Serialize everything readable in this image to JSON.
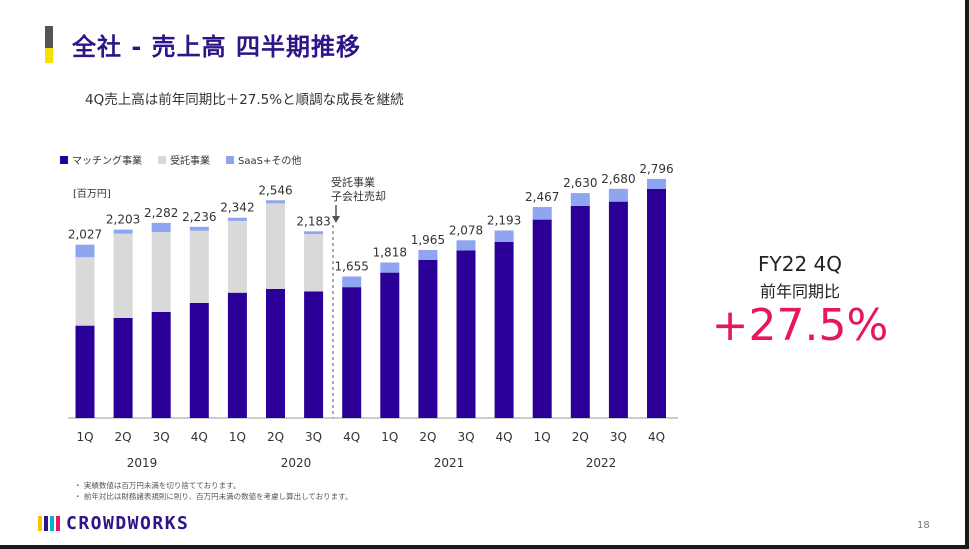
{
  "page": {
    "title": "全社 - 売上高 四半期推移",
    "subtitle": "4Q売上高は前年同期比＋27.5%と順調な成長を継続",
    "unit_label": "[百万円]",
    "annotation": [
      "受託事業",
      "子会社売却"
    ],
    "notes": [
      "・ 実績数値は百万円未満を切り捨てております。",
      "・ 前年対比は財務諸表規則に則り、百万円未満の数値を考慮し算出しております。"
    ],
    "kpi": {
      "period": "FY22 4Q",
      "label": "前年同期比",
      "value": "+27.5%"
    },
    "logo_text": "CROWDWORKS",
    "page_number": "18"
  },
  "colors": {
    "brand": "#2e1487",
    "accent": "#e6175c",
    "matching": "#2a0098",
    "contract": "#d9d9d9",
    "saas": "#8fa5ef"
  },
  "chart_data": {
    "type": "bar",
    "stacked": true,
    "categories": [
      "1Q",
      "2Q",
      "3Q",
      "4Q",
      "1Q",
      "2Q",
      "3Q",
      "4Q",
      "1Q",
      "2Q",
      "3Q",
      "4Q",
      "1Q",
      "2Q",
      "3Q",
      "4Q"
    ],
    "year_labels": [
      "2019",
      "2020",
      "2021",
      "2022"
    ],
    "totals": [
      "2,027",
      "2,203",
      "2,282",
      "2,236",
      "2,342",
      "2,546",
      "2,183",
      "1,655",
      "1,818",
      "1,965",
      "2,078",
      "2,193",
      "2,467",
      "2,630",
      "2,680",
      "2,796"
    ],
    "total_values": [
      2027,
      2203,
      2282,
      2236,
      2342,
      2546,
      2183,
      1655,
      1818,
      1965,
      2078,
      2193,
      2467,
      2630,
      2680,
      2796
    ],
    "series": [
      {
        "name": "マッチング事業",
        "values": [
          1080,
          1170,
          1240,
          1345,
          1465,
          1510,
          1480,
          1530,
          1700,
          1850,
          1960,
          2060,
          2320,
          2480,
          2530,
          2680
        ]
      },
      {
        "name": "受託事業",
        "values": [
          800,
          985,
          935,
          845,
          840,
          1000,
          670,
          0,
          0,
          0,
          0,
          0,
          0,
          0,
          0,
          0
        ]
      },
      {
        "name": "SaaS+その他",
        "values": [
          147,
          48,
          107,
          46,
          37,
          36,
          33,
          125,
          118,
          115,
          118,
          133,
          147,
          150,
          150,
          116
        ]
      }
    ],
    "ylim": [
      0,
      2900
    ],
    "legend": "top-left",
    "grid": false
  }
}
